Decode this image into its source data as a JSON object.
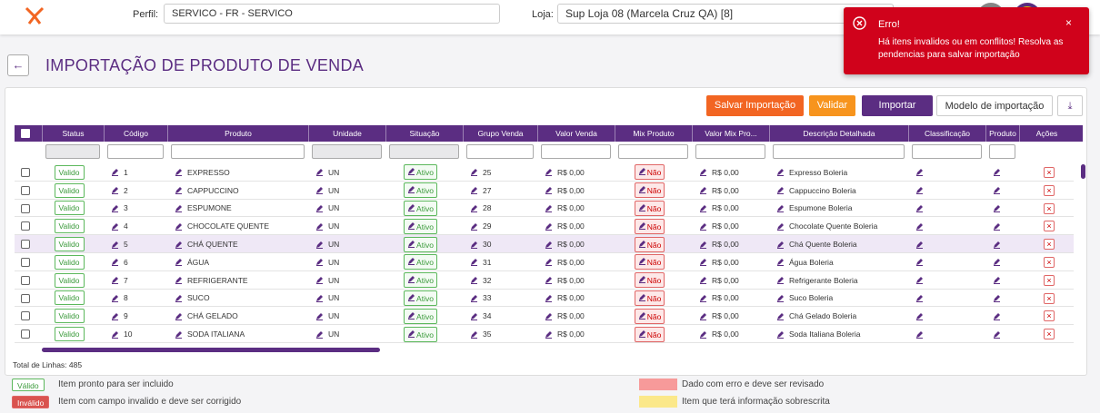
{
  "header": {
    "perfil_label": "Perfil:",
    "perfil_value": "SERVICO - FR - SERVICO",
    "loja_label": "Loja:",
    "loja_value": "Sup Loja 08 (Marcela Cruz QA) [8]"
  },
  "toast": {
    "title": "Erro!",
    "message": "Há itens invalidos ou em conflitos! Resolva as pendencias para salvar importação"
  },
  "page": {
    "title": "IMPORTAÇÃO DE PRODUTO DE VENDA"
  },
  "buttons": [
    "Salvar Importação",
    "Validar",
    "Importar",
    "Modelo de importação"
  ],
  "table": {
    "columns": [
      "Status",
      "Código",
      "Produto",
      "Unidade",
      "Situação",
      "Grupo Venda",
      "Valor Venda",
      "Mix Produto",
      "Valor Mix Pro...",
      "Descrição Detalhada",
      "Classificação",
      "Produto",
      "Ações"
    ],
    "rows": [
      [
        "Valido",
        1,
        "EXPRESSO",
        "UN",
        "Ativo",
        25,
        "R$ 0,00",
        "Não",
        "R$ 0,00",
        "Expresso Boleria"
      ],
      [
        "Valido",
        2,
        "CAPPUCCINO",
        "UN",
        "Ativo",
        27,
        "R$ 0,00",
        "Não",
        "R$ 0,00",
        "Cappuccino Boleria"
      ],
      [
        "Valido",
        3,
        "ESPUMONE",
        "UN",
        "Ativo",
        28,
        "R$ 0,00",
        "Não",
        "R$ 0,00",
        "Espumone Boleria"
      ],
      [
        "Valido",
        4,
        "CHOCOLATE QUENTE",
        "UN",
        "Ativo",
        29,
        "R$ 0,00",
        "Não",
        "R$ 0,00",
        "Chocolate Quente Boleria"
      ],
      [
        "Valido",
        5,
        "CHÁ QUENTE",
        "UN",
        "Ativo",
        30,
        "R$ 0,00",
        "Não",
        "R$ 0,00",
        "Chá Quente Boleria"
      ],
      [
        "Valido",
        6,
        "ÁGUA",
        "UN",
        "Ativo",
        31,
        "R$ 0,00",
        "Não",
        "R$ 0,00",
        "Água Boleria"
      ],
      [
        "Valido",
        7,
        "REFRIGERANTE",
        "UN",
        "Ativo",
        32,
        "R$ 0,00",
        "Não",
        "R$ 0,00",
        "Refrigerante Boleria"
      ],
      [
        "Valido",
        8,
        "SUCO",
        "UN",
        "Ativo",
        33,
        "R$ 0,00",
        "Não",
        "R$ 0,00",
        "Suco Boleria"
      ],
      [
        "Valido",
        9,
        "CHÁ GELADO",
        "UN",
        "Ativo",
        34,
        "R$ 0,00",
        "Não",
        "R$ 0,00",
        "Chá Gelado Boleria"
      ],
      [
        "Valido",
        10,
        "SODA ITALIANA",
        "UN",
        "Ativo",
        35,
        "R$ 0,00",
        "Não",
        "R$ 0,00",
        "Soda Italiana Boleria"
      ]
    ]
  },
  "total": "Total de Linhas: 485",
  "legend": [
    {
      "badge": "Válido",
      "text": "Item pronto para ser incluido"
    },
    {
      "badge": "Inválido",
      "text": "Item com campo invalido e deve ser corrigido"
    },
    {
      "text": "Dado com erro e deve ser revisado",
      "color": "#f79a9a"
    },
    {
      "text": "Item que terá informação sobrescrita",
      "color": "#fbe88a"
    }
  ]
}
